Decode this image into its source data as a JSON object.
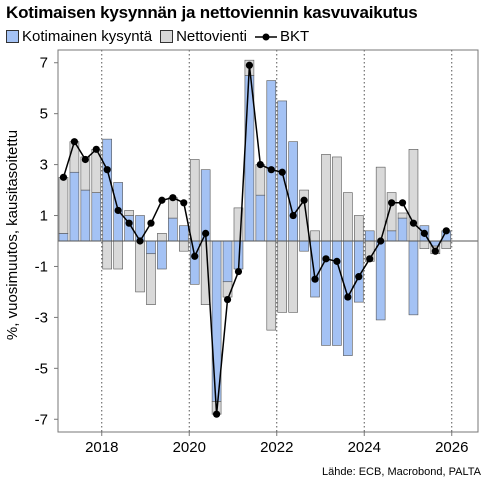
{
  "title": "Kotimaisen kysynnän ja nettoviennin kasvuvaikutus",
  "legend": {
    "domestic": "Kotimainen kysyntä",
    "net_exports": "Nettovienti",
    "gdp": "BKT"
  },
  "ylabel": "%, vuosimuutos, kausitasoitettu",
  "source": "Lähde: ECB, Macrobond, PALTA",
  "colors": {
    "domestic": "#a4c2f4",
    "net_exports": "#d9d9d9",
    "gdp": "#000000",
    "bar_edge": "#555555"
  },
  "chart_data": {
    "type": "bar",
    "stacked": true,
    "x_unit": "quarter",
    "quarters": [
      "2017Q1",
      "2017Q2",
      "2017Q3",
      "2017Q4",
      "2018Q1",
      "2018Q2",
      "2018Q3",
      "2018Q4",
      "2019Q1",
      "2019Q2",
      "2019Q3",
      "2019Q4",
      "2020Q1",
      "2020Q2",
      "2020Q3",
      "2020Q4",
      "2021Q1",
      "2021Q2",
      "2021Q3",
      "2021Q4",
      "2022Q1",
      "2022Q2",
      "2022Q3",
      "2022Q4",
      "2023Q1",
      "2023Q2",
      "2023Q3",
      "2023Q4",
      "2024Q1",
      "2024Q2",
      "2024Q3",
      "2024Q4",
      "2025Q1",
      "2025Q2",
      "2025Q3",
      "2025Q4"
    ],
    "series": [
      {
        "name": "Kotimainen kysyntä",
        "values": [
          0.3,
          2.7,
          2.0,
          1.9,
          4.0,
          2.3,
          1.0,
          1.0,
          -0.5,
          -1.1,
          0.9,
          0.6,
          -1.7,
          2.8,
          -6.3,
          -1.6,
          -1.1,
          6.5,
          1.8,
          6.3,
          5.5,
          3.9,
          -0.4,
          -2.2,
          -4.1,
          -4.1,
          -4.5,
          -2.4,
          0.4,
          -3.1,
          0.4,
          0.9,
          -2.9,
          0.6,
          -0.2,
          0.4
        ]
      },
      {
        "name": "Nettovienti",
        "values": [
          2.2,
          1.2,
          1.3,
          1.7,
          -1.1,
          -1.1,
          0.2,
          -2.0,
          -2.0,
          0.3,
          0.8,
          -0.4,
          3.2,
          -2.5,
          -0.5,
          -0.6,
          1.3,
          0.6,
          1.2,
          -3.5,
          -2.8,
          -2.8,
          2.0,
          0.4,
          3.4,
          3.3,
          1.9,
          1.0,
          -0.8,
          2.9,
          1.5,
          0.2,
          3.6,
          -0.3,
          -0.3,
          -0.3
        ]
      },
      {
        "name": "BKT",
        "type": "line",
        "values": [
          2.5,
          3.9,
          3.2,
          3.6,
          2.8,
          1.2,
          0.7,
          0.0,
          0.7,
          1.6,
          1.7,
          1.5,
          -0.6,
          0.3,
          -6.8,
          -2.3,
          -1.2,
          6.9,
          3.0,
          2.8,
          2.7,
          1.0,
          1.6,
          -1.5,
          -0.7,
          -0.8,
          -2.2,
          -1.4,
          -0.7,
          0.0,
          1.5,
          1.5,
          0.7,
          0.3,
          -0.4,
          0.4
        ]
      }
    ],
    "x_ticks": [
      "2018",
      "2020",
      "2022",
      "2024",
      "2026"
    ],
    "y_ticks": [
      "-7",
      "-5",
      "-3",
      "-1",
      "1",
      "3",
      "5",
      "7"
    ],
    "ylim": [
      -7.5,
      7.5
    ],
    "grid": "vertical dotted at year ticks",
    "legend_position": "top-left"
  }
}
